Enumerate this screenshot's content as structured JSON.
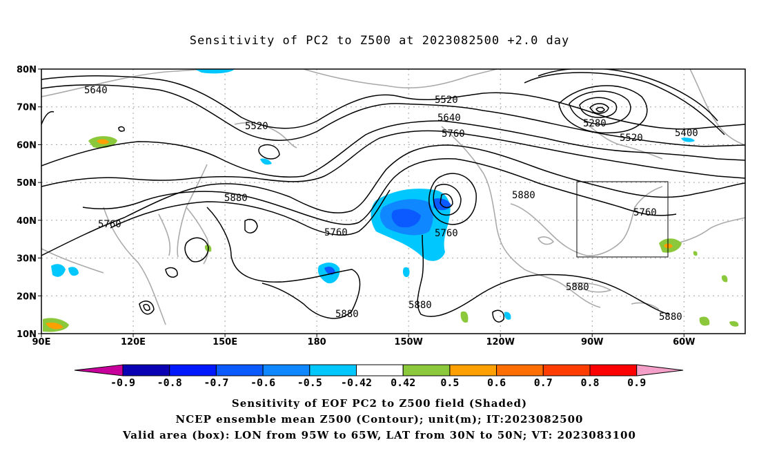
{
  "title": "Sensitivity of PC2 to Z500 at 2023082500 +2.0 day",
  "map": {
    "lat_labels": [
      "80N",
      "70N",
      "60N",
      "50N",
      "40N",
      "30N",
      "20N",
      "10N"
    ],
    "lon_labels": [
      "90E",
      "120E",
      "150E",
      "180",
      "150W",
      "120W",
      "90W",
      "60W"
    ],
    "contour_labels": [
      "5640",
      "5520",
      "5520",
      "5640",
      "5760",
      "5280",
      "5520",
      "5400",
      "5880",
      "5760",
      "5760",
      "5760",
      "5880",
      "5760",
      "5880",
      "5880",
      "5880",
      "5880"
    ],
    "valid_box": {
      "lon_from": "95W",
      "lon_to": "65W",
      "lat_from": "30N",
      "lat_to": "50N"
    }
  },
  "colorbar": {
    "labels": [
      "-0.9",
      "-0.8",
      "-0.7",
      "-0.6",
      "-0.5",
      "-0.42",
      "0.42",
      "0.5",
      "0.6",
      "0.7",
      "0.8",
      "0.9"
    ],
    "colors": [
      "#0a00b4",
      "#0019ff",
      "#0a5aff",
      "#0f87ff",
      "#00c8ff",
      "#ffffff",
      "#8cc83c",
      "#ffa000",
      "#ff6e00",
      "#ff3c00",
      "#ff0000"
    ],
    "low_tip_color": "#c8009b",
    "high_tip_color": "#f5a0c8"
  },
  "captions": {
    "line1": "Sensitivity of EOF PC2 to Z500 field (Shaded)",
    "line2": "NCEP ensemble mean Z500 (Contour); unit(m); IT:2023082500",
    "line3": "Valid area (box): LON from 95W to 65W, LAT from 30N to 50N; VT: 2023083100"
  }
}
